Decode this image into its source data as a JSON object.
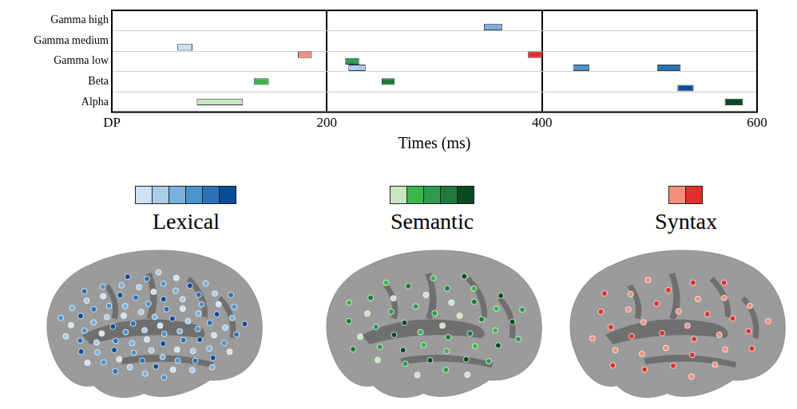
{
  "chart_data": {
    "type": "bar",
    "orientation": "horizontal",
    "x_label": "Times (ms)",
    "categories": [
      "Gamma high",
      "Gamma medium",
      "Gamma low",
      "Beta",
      "Alpha"
    ],
    "xlim": [
      0,
      600
    ],
    "xticks": [
      {
        "value": 0,
        "label": "DP"
      },
      200,
      400,
      600
    ],
    "grid": true,
    "series": [
      {
        "name": "Lexical",
        "categories": [
          "Gamma medium",
          "Gamma low",
          "Gamma high",
          "Gamma low",
          "Gamma low",
          "Beta"
        ],
        "values": [
          [
            61,
            75
          ],
          [
            220,
            236
          ],
          [
            346,
            363
          ],
          [
            429,
            444
          ],
          [
            507,
            529
          ],
          [
            526,
            541
          ]
        ],
        "colors": [
          "#d0e1f2",
          "#a9cce8",
          "#79b1dc",
          "#4a94cc",
          "#2a72b8",
          "#0b4c99"
        ]
      },
      {
        "name": "Semantic",
        "categories": [
          "Alpha",
          "Beta",
          "Gamma low",
          "Beta",
          "Alpha"
        ],
        "values": [
          [
            79,
            122
          ],
          [
            132,
            146
          ],
          [
            217,
            230
          ],
          [
            251,
            263
          ],
          [
            570,
            587
          ]
        ],
        "colors": [
          "#c8e6c0",
          "#3cb44b",
          "#2f9a4f",
          "#1d7a3a",
          "#0a4a20"
        ]
      },
      {
        "name": "Syntax",
        "categories": [
          "Gamma low",
          "Gamma low"
        ],
        "values": [
          [
            173,
            186
          ],
          [
            387,
            401
          ]
        ],
        "colors": [
          "#f4907a",
          "#e0302a"
        ]
      }
    ]
  }
}
